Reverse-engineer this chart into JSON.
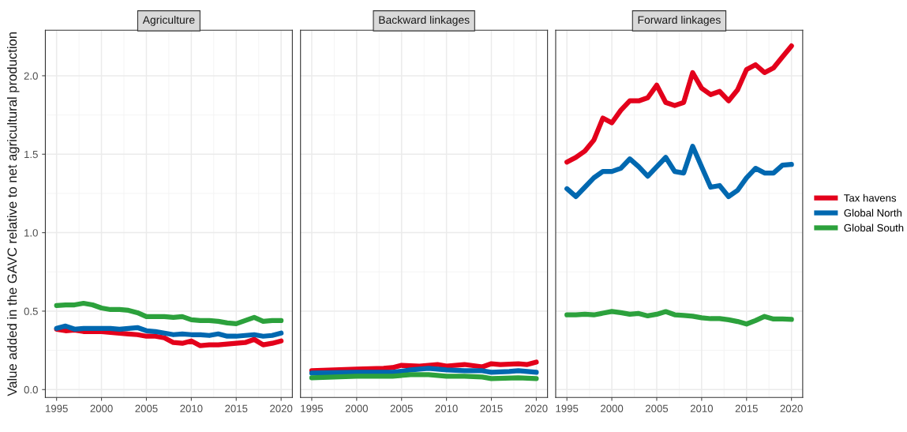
{
  "chart_data": [
    {
      "type": "line",
      "title": "Agriculture",
      "legend": "right",
      "ylabel": "Value added in the GAVC relative to net agricultural production",
      "x": [
        1995,
        1996,
        1997,
        1998,
        1999,
        2000,
        2001,
        2002,
        2003,
        2004,
        2005,
        2006,
        2007,
        2008,
        2009,
        2010,
        2011,
        2012,
        2013,
        2014,
        2015,
        2016,
        2017,
        2018,
        2019,
        2020
      ],
      "xlim": [
        1993.75,
        2021.25
      ],
      "xticks": [
        1995,
        2000,
        2005,
        2010,
        2015,
        2020
      ],
      "ylim": [
        -0.05,
        2.29
      ],
      "yticks": [
        {
          "value": 0,
          "label": "0.0"
        },
        {
          "value": 0.5,
          "label": "0.5"
        },
        {
          "value": 1,
          "label": "1.0"
        },
        {
          "value": 1.5,
          "label": "1.5"
        },
        {
          "value": 2,
          "label": "2.0"
        }
      ],
      "grid": true,
      "line_style": "solid",
      "series": [
        {
          "name": "Tax havens",
          "color": "#e3001b",
          "values": [
            0.385,
            0.375,
            0.38,
            0.37,
            0.37,
            0.37,
            0.365,
            0.36,
            0.355,
            0.35,
            0.34,
            0.34,
            0.33,
            0.3,
            0.295,
            0.31,
            0.28,
            0.285,
            0.285,
            0.29,
            0.295,
            0.3,
            0.32,
            0.285,
            0.295,
            0.31
          ]
        },
        {
          "name": "Global North",
          "color": "#0068b0",
          "values": [
            0.39,
            0.405,
            0.385,
            0.39,
            0.39,
            0.39,
            0.39,
            0.385,
            0.39,
            0.395,
            0.375,
            0.37,
            0.36,
            0.35,
            0.355,
            0.35,
            0.35,
            0.345,
            0.355,
            0.34,
            0.34,
            0.345,
            0.35,
            0.34,
            0.345,
            0.36
          ]
        },
        {
          "name": "Global South",
          "color": "#2ca13c",
          "values": [
            0.536,
            0.54,
            0.54,
            0.55,
            0.54,
            0.52,
            0.51,
            0.51,
            0.505,
            0.49,
            0.465,
            0.465,
            0.465,
            0.46,
            0.465,
            0.445,
            0.44,
            0.44,
            0.435,
            0.425,
            0.42,
            0.44,
            0.46,
            0.435,
            0.44,
            0.44
          ]
        }
      ]
    },
    {
      "type": "line",
      "title": "Backward linkages",
      "xlim": [
        1993.75,
        2021.25
      ],
      "xticks": [
        1995,
        2000,
        2005,
        2010,
        2015,
        2020
      ],
      "ylim": [
        -0.05,
        2.29
      ],
      "tick_labels": "x",
      "grid": true,
      "line_style": "solid",
      "series": [
        {
          "color": "#e3001b",
          "x": [
            1995,
            2000,
            2003,
            2004,
            2005,
            2007,
            2009,
            2010,
            2012,
            2014,
            2015,
            2016,
            2018,
            2019,
            2020
          ],
          "values": [
            0.12,
            0.13,
            0.135,
            0.14,
            0.155,
            0.15,
            0.16,
            0.15,
            0.16,
            0.145,
            0.165,
            0.16,
            0.165,
            0.16,
            0.175
          ]
        },
        {
          "color": "#0068b0",
          "x": [
            1995,
            2000,
            2004,
            2006,
            2008,
            2010,
            2012,
            2014,
            2015,
            2017,
            2018,
            2020
          ],
          "values": [
            0.105,
            0.11,
            0.11,
            0.125,
            0.135,
            0.125,
            0.12,
            0.12,
            0.11,
            0.115,
            0.12,
            0.11
          ]
        },
        {
          "color": "#2ca13c",
          "x": [
            1995,
            2000,
            2004,
            2006,
            2008,
            2010,
            2012,
            2014,
            2015,
            2018,
            2020
          ],
          "values": [
            0.075,
            0.085,
            0.085,
            0.095,
            0.095,
            0.085,
            0.085,
            0.08,
            0.07,
            0.075,
            0.07
          ]
        }
      ]
    },
    {
      "type": "line",
      "title": "Forward linkages",
      "x": [
        1995,
        1996,
        1997,
        1998,
        1999,
        2000,
        2001,
        2002,
        2003,
        2004,
        2005,
        2006,
        2007,
        2008,
        2009,
        2010,
        2011,
        2012,
        2013,
        2014,
        2015,
        2016,
        2017,
        2018,
        2019,
        2020
      ],
      "xlim": [
        1993.75,
        2021.25
      ],
      "xticks": [
        1995,
        2000,
        2005,
        2010,
        2015,
        2020
      ],
      "ylim": [
        -0.05,
        2.29
      ],
      "tick_labels": "x",
      "grid": true,
      "line_style": "solid",
      "series": [
        {
          "color": "#e3001b",
          "values": [
            1.45,
            1.48,
            1.52,
            1.59,
            1.73,
            1.7,
            1.78,
            1.84,
            1.84,
            1.86,
            1.94,
            1.83,
            1.81,
            1.83,
            2.02,
            1.92,
            1.88,
            1.9,
            1.84,
            1.91,
            2.04,
            2.07,
            2.02,
            2.05,
            2.12,
            2.19
          ]
        },
        {
          "color": "#0068b0",
          "values": [
            1.28,
            1.23,
            1.29,
            1.35,
            1.39,
            1.39,
            1.41,
            1.47,
            1.42,
            1.36,
            1.42,
            1.48,
            1.39,
            1.38,
            1.55,
            1.42,
            1.29,
            1.3,
            1.23,
            1.27,
            1.35,
            1.41,
            1.38,
            1.38,
            1.43,
            1.435
          ]
        },
        {
          "color": "#2ca13c",
          "values": [
            0.476,
            0.476,
            0.48,
            0.476,
            0.487,
            0.498,
            0.49,
            0.48,
            0.485,
            0.47,
            0.48,
            0.497,
            0.477,
            0.473,
            0.468,
            0.458,
            0.452,
            0.453,
            0.445,
            0.434,
            0.418,
            0.44,
            0.466,
            0.45,
            0.45,
            0.447
          ]
        }
      ]
    }
  ]
}
